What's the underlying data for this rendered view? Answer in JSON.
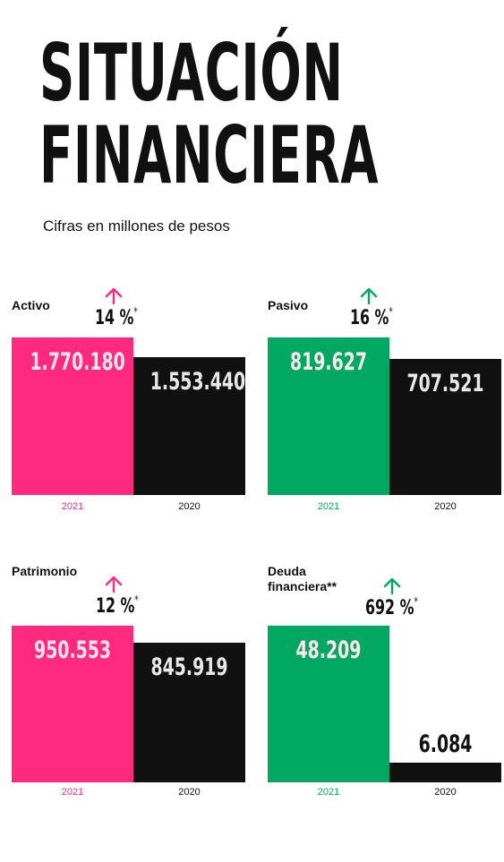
{
  "title_line1": "SITUACIÓN",
  "title_line2": "FINANCIERA",
  "subtitle": "Cifras en millones de pesos",
  "colors": {
    "pink": "#ff2a7f",
    "green": "#00a862",
    "dark": "#111111",
    "value_on_dark": "#e8e8e8",
    "value_on_color": "#fbe6ee"
  },
  "icons": {
    "growth": "up-arrow-icon"
  },
  "chart_data": [
    {
      "type": "bar",
      "title": "Activo",
      "accent": "pink",
      "categories": [
        "2021",
        "2020"
      ],
      "values": [
        1770180,
        1553440
      ],
      "value_labels": [
        "1.770.180",
        "1.553.440"
      ],
      "growth": "14 %",
      "growth_mark": "*"
    },
    {
      "type": "bar",
      "title": "Pasivo",
      "accent": "green",
      "categories": [
        "2021",
        "2020"
      ],
      "values": [
        819627,
        707521
      ],
      "value_labels": [
        "819.627",
        "707.521"
      ],
      "growth": "16 %",
      "growth_mark": "*"
    },
    {
      "type": "bar",
      "title": "Patrimonio",
      "accent": "pink",
      "categories": [
        "2021",
        "2020"
      ],
      "values": [
        950553,
        845919
      ],
      "value_labels": [
        "950.553",
        "845.919"
      ],
      "growth": "12 %",
      "growth_mark": "*"
    },
    {
      "type": "bar",
      "title": "Deuda\nfinanciera**",
      "accent": "green",
      "categories": [
        "2021",
        "2020"
      ],
      "values": [
        48209,
        6084
      ],
      "value_labels": [
        "48.209",
        "6.084"
      ],
      "growth": "692 %",
      "growth_mark": "*"
    }
  ]
}
